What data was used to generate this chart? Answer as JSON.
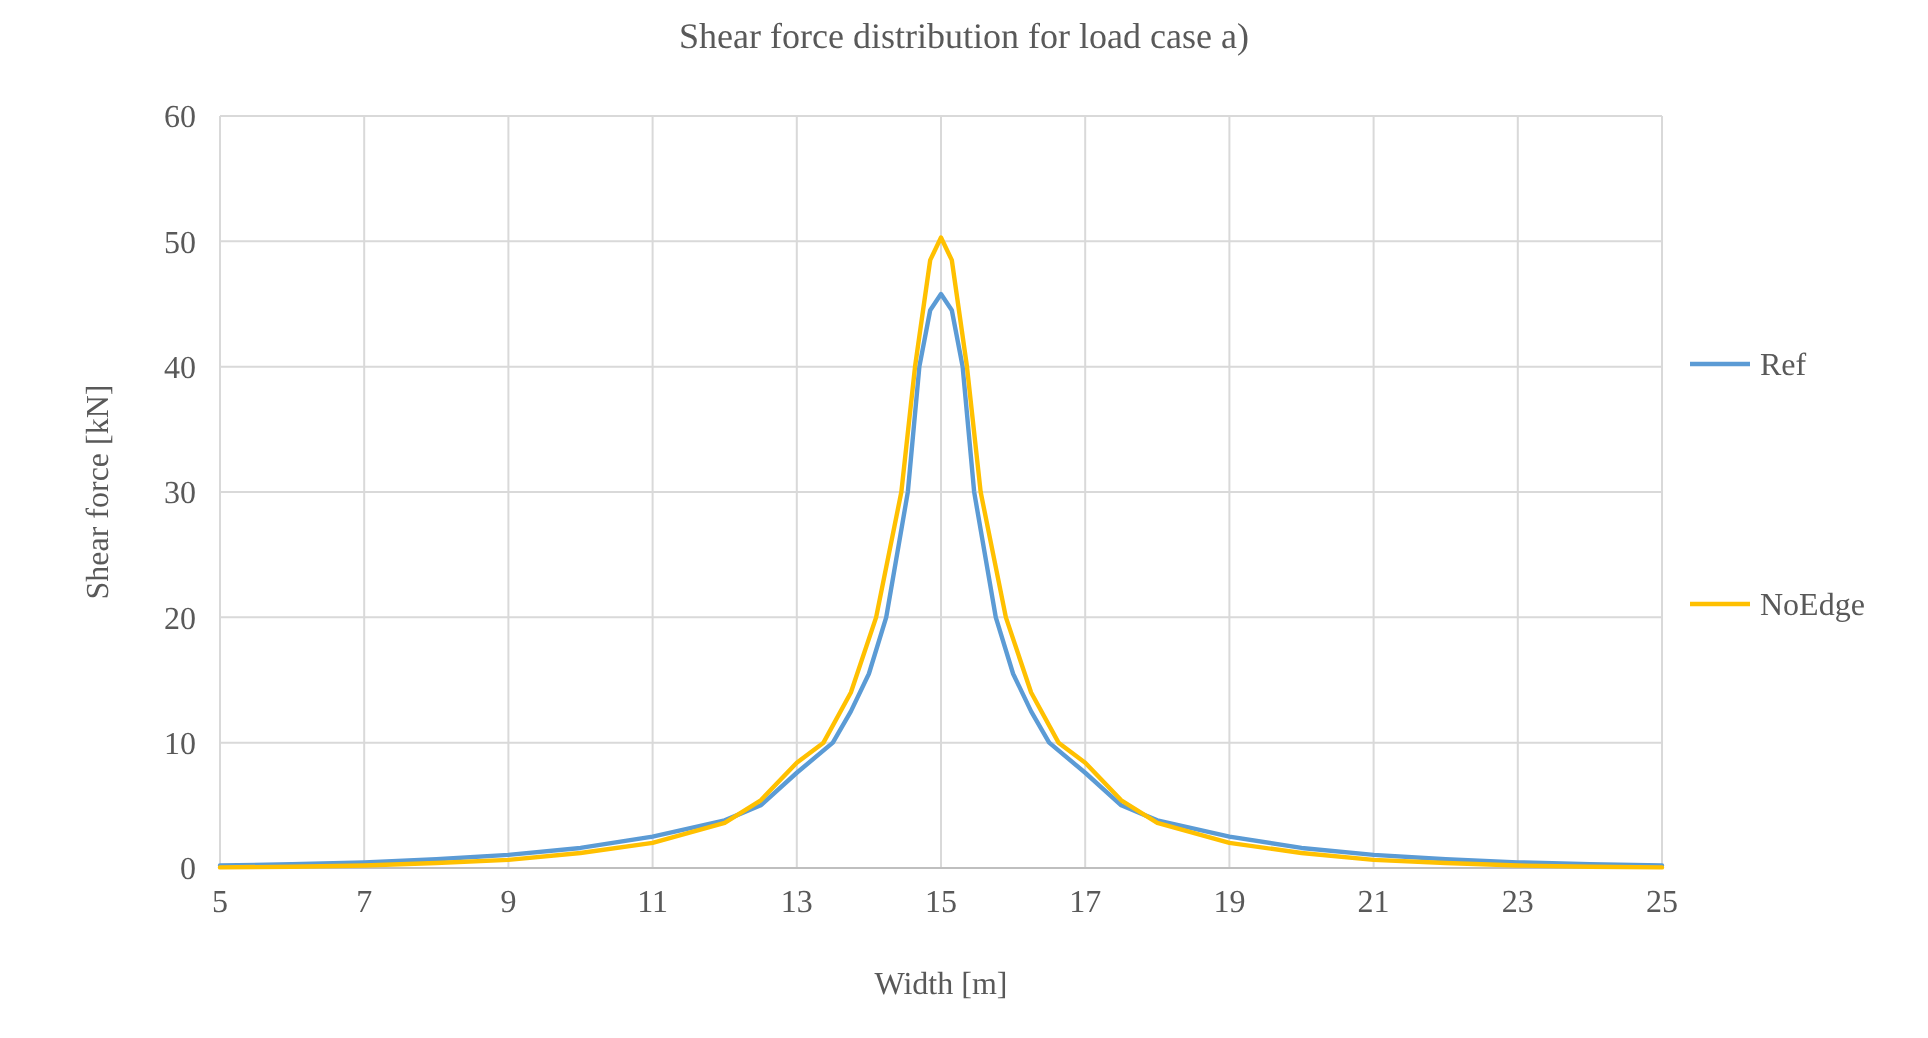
{
  "chart_data": {
    "type": "line",
    "title": "Shear force distribution for load case a)",
    "xlabel": "Width [m]",
    "ylabel": "Shear force [kN]",
    "xlim": [
      5,
      25
    ],
    "xticks": [
      5,
      7,
      9,
      11,
      13,
      15,
      17,
      19,
      21,
      23,
      25
    ],
    "ylim": [
      0,
      60
    ],
    "yticks": [
      0,
      10,
      20,
      30,
      40,
      50,
      60
    ],
    "grid": true,
    "legend": "right",
    "marker": "none",
    "line_style": "solid",
    "series": [
      {
        "name": "Ref",
        "color": "#5b9bd5",
        "x": [
          5,
          6,
          7,
          8,
          9,
          10,
          11,
          12,
          12.5,
          13,
          13.5,
          13.75,
          14,
          14.24,
          14.54,
          14.7,
          14.85,
          15,
          15.15,
          15.3,
          15.46,
          15.76,
          16,
          16.25,
          16.5,
          17,
          17.5,
          18,
          19,
          20,
          21,
          22,
          23,
          24,
          25
        ],
        "values": [
          0.2,
          0.3,
          0.45,
          0.7,
          1.05,
          1.6,
          2.5,
          3.8,
          5,
          7.6,
          10,
          12.5,
          15.5,
          20,
          30,
          40,
          44.5,
          45.8,
          44.5,
          40,
          30,
          20,
          15.5,
          12.5,
          10,
          7.6,
          5,
          3.8,
          2.5,
          1.6,
          1.05,
          0.7,
          0.45,
          0.3,
          0.2
        ]
      },
      {
        "name": "NoEdge",
        "color": "#ffc000",
        "x": [
          5,
          6,
          7,
          8,
          9,
          10,
          11,
          12,
          12.5,
          13,
          13.37,
          13.75,
          14.1,
          14.45,
          14.64,
          14.85,
          15,
          15.15,
          15.36,
          15.55,
          15.9,
          16.25,
          16.63,
          17,
          17.5,
          18,
          19,
          20,
          21,
          22,
          23,
          24,
          25
        ],
        "values": [
          0.05,
          0.1,
          0.2,
          0.4,
          0.65,
          1.2,
          2,
          3.6,
          5.4,
          8.4,
          10,
          14,
          20,
          30,
          40,
          48.5,
          50.3,
          48.5,
          40,
          30,
          20,
          14,
          10,
          8.4,
          5.4,
          3.6,
          2,
          1.2,
          0.65,
          0.4,
          0.2,
          0.1,
          0.05
        ]
      }
    ]
  }
}
